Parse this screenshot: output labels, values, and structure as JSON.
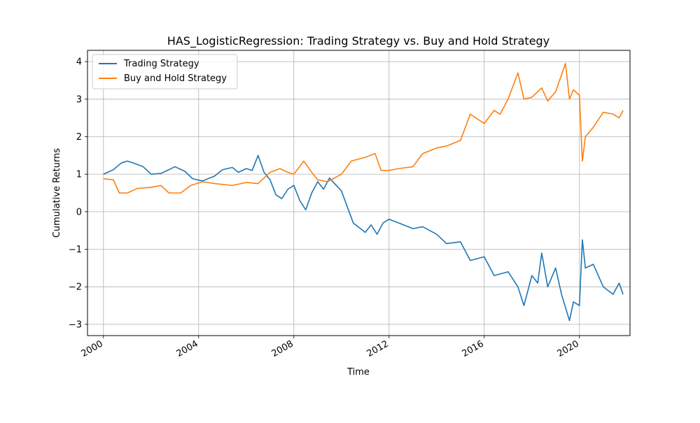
{
  "chart_data": {
    "type": "line",
    "title": "HAS_LogisticRegression: Trading Strategy vs. Buy and Hold Strategy",
    "xlabel": "Time",
    "ylabel": "Cumulative Returns",
    "xlim": [
      "1999-05-01",
      "2022-02-15"
    ],
    "ylim": [
      -3.3,
      4.3
    ],
    "x_ticks": [
      "2000",
      "2004",
      "2008",
      "2012",
      "2016",
      "2020"
    ],
    "y_ticks": [
      -3,
      -2,
      -1,
      0,
      1,
      2,
      3,
      4
    ],
    "grid": true,
    "legend_position": "upper-left",
    "series": [
      {
        "name": "Trading Strategy",
        "color": "#1f77b4",
        "points": [
          [
            "2000-01-01",
            1.0
          ],
          [
            "2000-06-01",
            1.12
          ],
          [
            "2000-10-01",
            1.3
          ],
          [
            "2001-01-01",
            1.35
          ],
          [
            "2001-04-01",
            1.3
          ],
          [
            "2001-09-01",
            1.2
          ],
          [
            "2002-01-01",
            1.0
          ],
          [
            "2002-06-01",
            1.02
          ],
          [
            "2002-10-01",
            1.12
          ],
          [
            "2003-01-01",
            1.2
          ],
          [
            "2003-06-01",
            1.08
          ],
          [
            "2003-10-01",
            0.88
          ],
          [
            "2004-03-01",
            0.82
          ],
          [
            "2004-09-01",
            0.95
          ],
          [
            "2005-01-01",
            1.12
          ],
          [
            "2005-06-01",
            1.18
          ],
          [
            "2005-09-01",
            1.05
          ],
          [
            "2006-01-01",
            1.15
          ],
          [
            "2006-04-01",
            1.1
          ],
          [
            "2006-07-01",
            1.5
          ],
          [
            "2006-10-01",
            1.05
          ],
          [
            "2007-01-01",
            0.85
          ],
          [
            "2007-04-01",
            0.45
          ],
          [
            "2007-07-01",
            0.35
          ],
          [
            "2007-10-01",
            0.6
          ],
          [
            "2008-01-01",
            0.7
          ],
          [
            "2008-04-01",
            0.3
          ],
          [
            "2008-07-01",
            0.05
          ],
          [
            "2008-10-01",
            0.5
          ],
          [
            "2009-01-01",
            0.8
          ],
          [
            "2009-04-01",
            0.6
          ],
          [
            "2009-07-01",
            0.9
          ],
          [
            "2010-01-01",
            0.55
          ],
          [
            "2010-07-01",
            -0.3
          ],
          [
            "2011-01-01",
            -0.55
          ],
          [
            "2011-04-01",
            -0.35
          ],
          [
            "2011-07-01",
            -0.6
          ],
          [
            "2011-10-01",
            -0.3
          ],
          [
            "2012-01-01",
            -0.2
          ],
          [
            "2012-06-01",
            -0.3
          ],
          [
            "2013-01-01",
            -0.45
          ],
          [
            "2013-06-01",
            -0.4
          ],
          [
            "2014-01-01",
            -0.6
          ],
          [
            "2014-06-01",
            -0.85
          ],
          [
            "2015-01-01",
            -0.8
          ],
          [
            "2015-06-01",
            -1.3
          ],
          [
            "2016-01-01",
            -1.2
          ],
          [
            "2016-06-01",
            -1.7
          ],
          [
            "2017-01-01",
            -1.6
          ],
          [
            "2017-06-01",
            -2.0
          ],
          [
            "2017-09-01",
            -2.5
          ],
          [
            "2018-01-01",
            -1.7
          ],
          [
            "2018-04-01",
            -1.9
          ],
          [
            "2018-06-01",
            -1.1
          ],
          [
            "2018-09-01",
            -2.0
          ],
          [
            "2019-01-01",
            -1.5
          ],
          [
            "2019-04-01",
            -2.2
          ],
          [
            "2019-08-01",
            -2.9
          ],
          [
            "2019-10-01",
            -2.4
          ],
          [
            "2020-01-01",
            -2.5
          ],
          [
            "2020-02-15",
            -0.75
          ],
          [
            "2020-04-01",
            -1.5
          ],
          [
            "2020-08-01",
            -1.4
          ],
          [
            "2021-01-01",
            -2.0
          ],
          [
            "2021-06-01",
            -2.2
          ],
          [
            "2021-09-01",
            -1.9
          ],
          [
            "2021-11-01",
            -2.2
          ]
        ]
      },
      {
        "name": "Buy and Hold Strategy",
        "color": "#ff7f0e",
        "points": [
          [
            "2000-01-01",
            0.88
          ],
          [
            "2000-06-01",
            0.85
          ],
          [
            "2000-09-01",
            0.5
          ],
          [
            "2001-01-01",
            0.5
          ],
          [
            "2001-06-01",
            0.62
          ],
          [
            "2002-01-01",
            0.65
          ],
          [
            "2002-06-01",
            0.7
          ],
          [
            "2002-10-01",
            0.5
          ],
          [
            "2003-04-01",
            0.5
          ],
          [
            "2003-09-01",
            0.7
          ],
          [
            "2004-03-01",
            0.8
          ],
          [
            "2004-09-01",
            0.75
          ],
          [
            "2005-06-01",
            0.7
          ],
          [
            "2006-01-01",
            0.78
          ],
          [
            "2006-07-01",
            0.75
          ],
          [
            "2007-01-01",
            1.05
          ],
          [
            "2007-06-01",
            1.15
          ],
          [
            "2007-10-01",
            1.05
          ],
          [
            "2008-01-01",
            1.0
          ],
          [
            "2008-06-01",
            1.35
          ],
          [
            "2008-10-01",
            1.05
          ],
          [
            "2009-01-01",
            0.85
          ],
          [
            "2009-06-01",
            0.8
          ],
          [
            "2010-01-01",
            1.0
          ],
          [
            "2010-06-01",
            1.35
          ],
          [
            "2011-01-01",
            1.45
          ],
          [
            "2011-06-01",
            1.55
          ],
          [
            "2011-09-01",
            1.1
          ],
          [
            "2012-01-01",
            1.1
          ],
          [
            "2012-06-01",
            1.15
          ],
          [
            "2013-01-01",
            1.2
          ],
          [
            "2013-06-01",
            1.55
          ],
          [
            "2014-01-01",
            1.7
          ],
          [
            "2014-06-01",
            1.75
          ],
          [
            "2015-01-01",
            1.9
          ],
          [
            "2015-06-01",
            2.6
          ],
          [
            "2016-01-01",
            2.35
          ],
          [
            "2016-06-01",
            2.7
          ],
          [
            "2016-09-01",
            2.6
          ],
          [
            "2017-01-01",
            3.0
          ],
          [
            "2017-06-01",
            3.7
          ],
          [
            "2017-09-01",
            3.0
          ],
          [
            "2018-01-01",
            3.05
          ],
          [
            "2018-06-01",
            3.3
          ],
          [
            "2018-09-01",
            2.95
          ],
          [
            "2019-01-01",
            3.2
          ],
          [
            "2019-06-01",
            3.95
          ],
          [
            "2019-08-01",
            3.0
          ],
          [
            "2019-10-01",
            3.25
          ],
          [
            "2020-01-01",
            3.1
          ],
          [
            "2020-02-15",
            1.35
          ],
          [
            "2020-04-01",
            2.0
          ],
          [
            "2020-08-01",
            2.25
          ],
          [
            "2021-01-01",
            2.65
          ],
          [
            "2021-06-01",
            2.6
          ],
          [
            "2021-09-01",
            2.5
          ],
          [
            "2021-11-01",
            2.7
          ]
        ]
      }
    ]
  }
}
